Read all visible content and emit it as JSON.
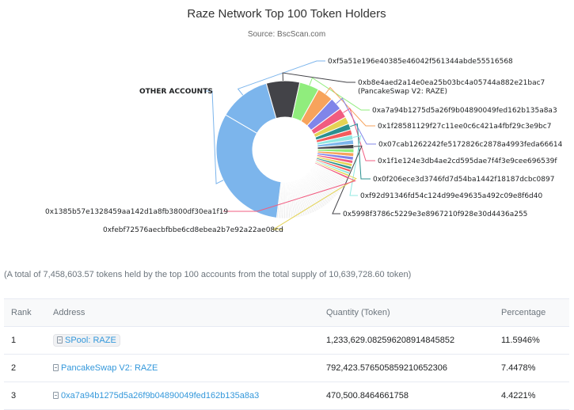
{
  "chart_data": {
    "type": "pie",
    "title": "Raze Network Top 100 Token Holders",
    "subtitle": "Source: BscScan.com",
    "slices": [
      {
        "label": "OTHER ACCOUNTS",
        "value": 29.9,
        "color": "#7cb5ec",
        "labeled": true
      },
      {
        "label": "0xf5a51e196e40385e46042f561344abde55516568",
        "value": 11.59,
        "color": "#7cb5ec",
        "labeled": true
      },
      {
        "label": "0xb8e4aed2a14e0ea25b03bc4a05744a882e21bac7 (PancakeSwap V2: RAZE)",
        "value": 7.45,
        "color": "#434348",
        "labeled": true
      },
      {
        "label": "0xa7a94b1275d5a26f9b04890049fed162b135a8a3",
        "value": 4.42,
        "color": "#90ed7d",
        "labeled": true
      },
      {
        "label": "0x1f28581129f27c11ee0c6c421a4fbf29c3e9bc7",
        "value": 3.6,
        "color": "#f7a35c",
        "labeled": true
      },
      {
        "label": "0x07cab1262242fe5172826c2878a4993feda66614",
        "value": 2.8,
        "color": "#8085e9",
        "labeled": true
      },
      {
        "label": "0x1f1e124e3db4ae2cd595dae7f4f3e9cee696539f",
        "value": 2.2,
        "color": "#f15c80",
        "labeled": true
      },
      {
        "label": "",
        "value": 1.6,
        "color": "#e4d354",
        "labeled": false
      },
      {
        "label": "0x0f206ece3d3746fd7d54ba1442f18187dcbc0897",
        "value": 1.4,
        "color": "#2b908f",
        "labeled": true
      },
      {
        "label": "",
        "value": 1.2,
        "color": "#f45b5b",
        "labeled": false
      },
      {
        "label": "0xf92d91346fd54c124d99e49635a492c09e8f6d40",
        "value": 1.1,
        "color": "#91e8e1",
        "labeled": true
      },
      {
        "label": "",
        "value": 1.0,
        "color": "#7cb5ec",
        "labeled": false
      },
      {
        "label": "0x5998f3786c5229e3e8967210f928e30d4436a255",
        "value": 0.95,
        "color": "#434348",
        "labeled": true
      },
      {
        "label": "",
        "value": 0.9,
        "color": "#90ed7d",
        "labeled": false
      },
      {
        "label": "",
        "value": 0.85,
        "color": "#f7a35c",
        "labeled": false
      },
      {
        "label": "",
        "value": 0.8,
        "color": "#8085e9",
        "labeled": false
      },
      {
        "label": "",
        "value": 0.75,
        "color": "#f15c80",
        "labeled": false
      },
      {
        "label": "",
        "value": 0.7,
        "color": "#e4d354",
        "labeled": false
      },
      {
        "label": "",
        "value": 0.65,
        "color": "#2b908f",
        "labeled": false
      },
      {
        "label": "",
        "value": 0.6,
        "color": "#f45b5b",
        "labeled": false
      },
      {
        "label": "",
        "value": 0.55,
        "color": "#91e8e1",
        "labeled": false
      },
      {
        "label": "0xfebf72576aecbfbbe6cd8ebea2b7e92a22ae08cd",
        "value": 0.5,
        "color": "#e4d354",
        "labeled": true
      },
      {
        "label": "0x1385b57e1328459aa142d1a8fb3800df30ea1f19",
        "value": 0.5,
        "color": "#f15c80",
        "labeled": true
      }
    ]
  },
  "summary_text": "(A total of 7,458,603.57 tokens held by the top 100 accounts from the total supply of 10,639,728.60 token)",
  "table": {
    "headers": {
      "rank": "Rank",
      "address": "Address",
      "quantity": "Quantity (Token)",
      "percentage": "Percentage"
    },
    "rows": [
      {
        "rank": "1",
        "address": "SPool: RAZE",
        "quantity": "1,233,629.082596208914845852",
        "percentage": "11.5946%"
      },
      {
        "rank": "2",
        "address": "PancakeSwap V2: RAZE",
        "quantity": "792,423.576505859210652306",
        "percentage": "7.4478%"
      },
      {
        "rank": "3",
        "address": "0xa7a94b1275d5a26f9b04890049fed162b135a8a3",
        "quantity": "470,500.8464661758",
        "percentage": "4.4221%"
      }
    ]
  }
}
